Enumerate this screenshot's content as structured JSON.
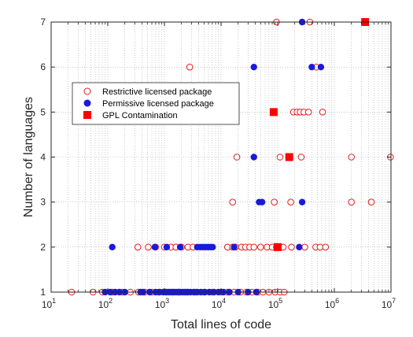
{
  "chart_data": {
    "type": "scatter",
    "xscale": "log",
    "xlabel": "Total lines of code",
    "ylabel": "Number of languages",
    "xlim": [
      10,
      10000000
    ],
    "ylim": [
      1,
      7
    ],
    "x_ticks": [
      {
        "value": 10,
        "base": "10",
        "exp": "1"
      },
      {
        "value": 100,
        "base": "10",
        "exp": "2"
      },
      {
        "value": 1000,
        "base": "10",
        "exp": "3"
      },
      {
        "value": 10000,
        "base": "10",
        "exp": "4"
      },
      {
        "value": 100000,
        "base": "10",
        "exp": "5"
      },
      {
        "value": 1000000,
        "base": "10",
        "exp": "6"
      },
      {
        "value": 10000000,
        "base": "10",
        "exp": "7"
      }
    ],
    "y_ticks": [
      1,
      2,
      3,
      4,
      5,
      6,
      7
    ],
    "grid": "dotted, major and minor",
    "legend_position": "upper-left",
    "series": [
      {
        "name": "Restrictive licensed package",
        "marker": "open-circle",
        "color": "#e41a1c",
        "points": [
          [
            23,
            1
          ],
          [
            55,
            1
          ],
          [
            80,
            1
          ],
          [
            120,
            1
          ],
          [
            180,
            1
          ],
          [
            250,
            1
          ],
          [
            350,
            1
          ],
          [
            450,
            1
          ],
          [
            600,
            1
          ],
          [
            800,
            1
          ],
          [
            1100,
            1
          ],
          [
            1400,
            1
          ],
          [
            1800,
            1
          ],
          [
            2500,
            1
          ],
          [
            3500,
            1
          ],
          [
            5000,
            1
          ],
          [
            7000,
            1
          ],
          [
            10000,
            1
          ],
          [
            13000,
            1
          ],
          [
            17000,
            1
          ],
          [
            22000,
            1
          ],
          [
            28000,
            1
          ],
          [
            35000,
            1
          ],
          [
            45000,
            1
          ],
          [
            55000,
            1
          ],
          [
            70000,
            1
          ],
          [
            90000,
            1
          ],
          [
            110000,
            1
          ],
          [
            130000,
            1
          ],
          [
            340,
            2
          ],
          [
            520,
            2
          ],
          [
            700,
            2
          ],
          [
            1000,
            2
          ],
          [
            1300,
            2
          ],
          [
            1600,
            2
          ],
          [
            2000,
            2
          ],
          [
            2600,
            2
          ],
          [
            3200,
            2
          ],
          [
            13000,
            2
          ],
          [
            16000,
            2
          ],
          [
            18000,
            2
          ],
          [
            23000,
            2
          ],
          [
            27000,
            2
          ],
          [
            32000,
            2
          ],
          [
            38000,
            2
          ],
          [
            50000,
            2
          ],
          [
            65000,
            2
          ],
          [
            80000,
            2
          ],
          [
            110000,
            2
          ],
          [
            125000,
            2
          ],
          [
            175000,
            2
          ],
          [
            300000,
            2
          ],
          [
            470000,
            2
          ],
          [
            560000,
            2
          ],
          [
            700000,
            2
          ],
          [
            16000,
            3
          ],
          [
            87000,
            3
          ],
          [
            170000,
            3
          ],
          [
            4500000,
            3
          ],
          [
            2000000,
            3
          ],
          [
            19000,
            4
          ],
          [
            110000,
            4
          ],
          [
            260000,
            4
          ],
          [
            2000000,
            4
          ],
          [
            9800000,
            4
          ],
          [
            190000,
            5
          ],
          [
            220000,
            5
          ],
          [
            250000,
            5
          ],
          [
            290000,
            5
          ],
          [
            350000,
            5
          ],
          [
            620000,
            5
          ],
          [
            2800,
            6
          ],
          [
            480000,
            6
          ],
          [
            95000,
            7
          ],
          [
            370000,
            7
          ]
        ]
      },
      {
        "name": "Permissive licensed package",
        "marker": "filled-circle",
        "color": "#1a1adb",
        "points": [
          [
            90,
            1
          ],
          [
            110,
            1
          ],
          [
            135,
            1
          ],
          [
            160,
            1
          ],
          [
            200,
            1
          ],
          [
            380,
            1
          ],
          [
            420,
            1
          ],
          [
            550,
            1
          ],
          [
            700,
            1
          ],
          [
            820,
            1
          ],
          [
            950,
            1
          ],
          [
            1050,
            1
          ],
          [
            1200,
            1
          ],
          [
            1300,
            1
          ],
          [
            1450,
            1
          ],
          [
            1600,
            1
          ],
          [
            1750,
            1
          ],
          [
            1900,
            1
          ],
          [
            2100,
            1
          ],
          [
            2300,
            1
          ],
          [
            2600,
            1
          ],
          [
            2900,
            1
          ],
          [
            3300,
            1
          ],
          [
            3800,
            1
          ],
          [
            4400,
            1
          ],
          [
            5200,
            1
          ],
          [
            6200,
            1
          ],
          [
            7500,
            1
          ],
          [
            9000,
            1
          ],
          [
            11000,
            1
          ],
          [
            14000,
            1
          ],
          [
            20000,
            1
          ],
          [
            30000,
            1
          ],
          [
            42000,
            1
          ],
          [
            120,
            2
          ],
          [
            680,
            2
          ],
          [
            1100,
            2
          ],
          [
            1900,
            2
          ],
          [
            3800,
            2
          ],
          [
            4300,
            2
          ],
          [
            4800,
            2
          ],
          [
            5300,
            2
          ],
          [
            5900,
            2
          ],
          [
            6500,
            2
          ],
          [
            7100,
            2
          ],
          [
            17000,
            2
          ],
          [
            95000,
            2
          ],
          [
            240000,
            2
          ],
          [
            47000,
            3
          ],
          [
            53000,
            3
          ],
          [
            270000,
            3
          ],
          [
            38000,
            4
          ],
          [
            38000,
            6
          ],
          [
            400000,
            6
          ],
          [
            580000,
            6
          ],
          [
            270000,
            7
          ]
        ]
      },
      {
        "name": "GPL Contamination",
        "marker": "filled-square",
        "color": "#ff0000",
        "points": [
          [
            100000,
            2
          ],
          [
            85000,
            5
          ],
          [
            160000,
            4
          ],
          [
            3500000,
            7
          ]
        ]
      }
    ]
  }
}
